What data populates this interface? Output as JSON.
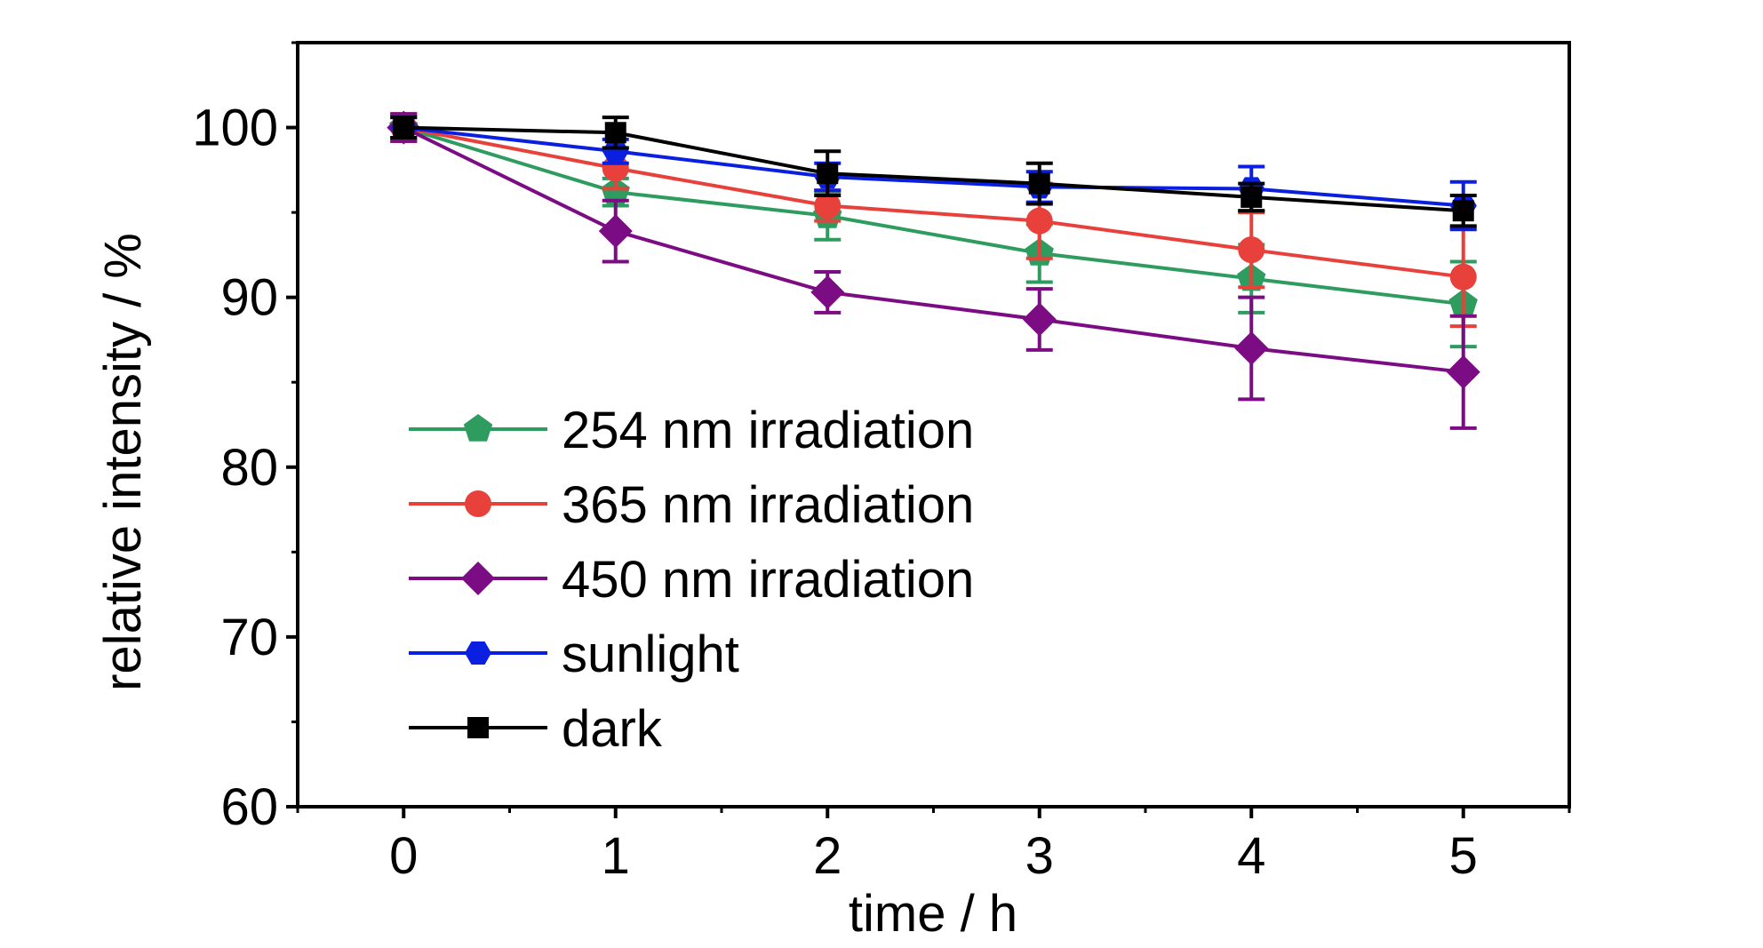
{
  "chart_data": {
    "type": "line",
    "xlabel": "time / h",
    "ylabel": "relative intensity / %",
    "xlim": [
      -0.5,
      5.5
    ],
    "ylim": [
      60,
      105
    ],
    "xticks": [
      "0",
      "1",
      "2",
      "3",
      "4",
      "5"
    ],
    "yticks": [
      "60",
      "70",
      "80",
      "90",
      "100"
    ],
    "x": [
      0,
      1,
      2,
      3,
      4,
      5
    ],
    "grid": false,
    "legend_position": "lower-left",
    "series": [
      {
        "name": "254 nm irradiation",
        "color": "#2e9c5e",
        "marker": "pentagon",
        "values": [
          100.0,
          96.2,
          94.8,
          92.6,
          91.1,
          89.6
        ],
        "errors": [
          0.8,
          0.8,
          1.4,
          1.7,
          2.0,
          2.5
        ]
      },
      {
        "name": "365 nm irradiation",
        "color": "#e8413c",
        "marker": "circle",
        "values": [
          100.0,
          97.6,
          95.4,
          94.5,
          92.8,
          91.2
        ],
        "errors": [
          0.8,
          1.2,
          0.9,
          2.2,
          2.2,
          2.9
        ]
      },
      {
        "name": "450 nm irradiation",
        "color": "#7c0c84",
        "marker": "diamond",
        "values": [
          100.0,
          93.9,
          90.3,
          88.7,
          87.0,
          85.6
        ],
        "errors": [
          0.8,
          1.8,
          1.2,
          1.8,
          3.0,
          3.3
        ]
      },
      {
        "name": "sunlight",
        "color": "#0a1fe0",
        "marker": "hexagon",
        "values": [
          100.0,
          98.6,
          97.1,
          96.5,
          96.4,
          95.4
        ],
        "errors": [
          0.6,
          0.7,
          0.8,
          0.9,
          1.3,
          1.4
        ]
      },
      {
        "name": "dark",
        "color": "#000000",
        "marker": "square",
        "values": [
          100.0,
          99.7,
          97.3,
          96.7,
          95.9,
          95.1
        ],
        "errors": [
          0.6,
          0.9,
          1.3,
          1.2,
          0.8,
          0.9
        ]
      }
    ]
  }
}
